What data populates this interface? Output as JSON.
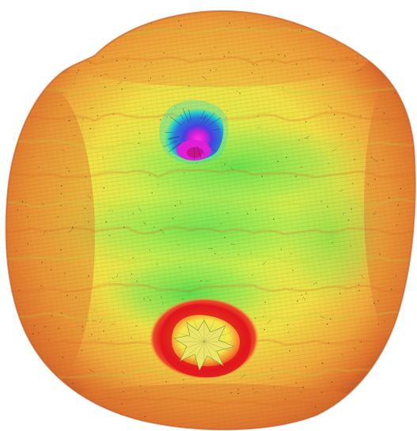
{
  "scene": {
    "subject": "colored-surface-map-blob",
    "colors": {
      "background": "#ffffff",
      "rim": "#d9662a",
      "orange": "#f2a23a",
      "yellow": "#f4e84a",
      "green": "#3fd94a",
      "light_green": "#9ee85a",
      "cyan": "#28d9c8",
      "blue": "#2a5bd9",
      "magenta": "#e020d8",
      "red": "#e0161c",
      "mesh": "#3a3a2a"
    },
    "features": [
      {
        "name": "upper-depression",
        "palette": [
          "cyan",
          "blue",
          "magenta"
        ]
      },
      {
        "name": "lower-peak",
        "palette": [
          "green",
          "yellow",
          "red"
        ]
      }
    ]
  }
}
